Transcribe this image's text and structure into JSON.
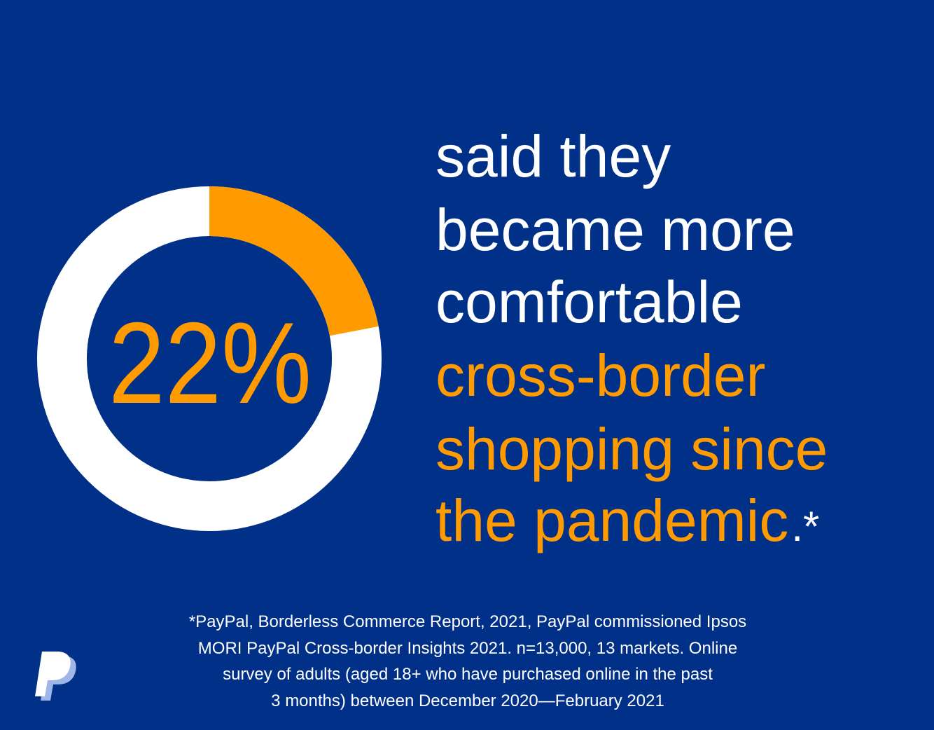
{
  "chart_data": {
    "type": "donut",
    "values": [
      22
    ],
    "value_labels": [
      "22%"
    ],
    "range": [
      0,
      100
    ],
    "color": "#ff9a00",
    "track_color": "#ffffff"
  },
  "headline": {
    "lines": [
      "said they",
      "became more",
      "comfortable"
    ],
    "highlight_lines": [
      "cross-border",
      "shopping since",
      "the pandemic"
    ],
    "end_mark": ".*"
  },
  "footnote": {
    "lines": [
      "*PayPal, Borderless Commerce Report, 2021, PayPal commissioned Ipsos",
      "MORI PayPal Cross-border Insights 2021. n=13,000, 13 markets. Online",
      "survey of adults (aged 18+ who have purchased online in the past",
      "3 months) between December 2020—February 2021"
    ]
  }
}
